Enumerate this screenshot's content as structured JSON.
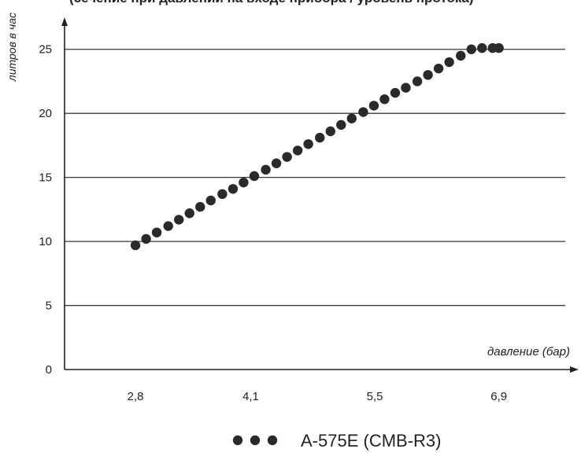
{
  "chart_data": {
    "type": "scatter",
    "title": "",
    "xlabel": "давление (бар)",
    "ylabel": "литров в час",
    "x_ticks": [
      "2,8",
      "4,1",
      "5,5",
      "6,9"
    ],
    "y_ticks": [
      "0",
      "5",
      "10",
      "15",
      "20",
      "25"
    ],
    "xlim": [
      2.0,
      7.8
    ],
    "ylim": [
      0,
      27.5
    ],
    "grid": "horizontal",
    "legend_position": "bottom-center",
    "series": [
      {
        "name": "A-575E (CMB-R3)",
        "color": "#2a2a2a",
        "marker": "circle",
        "x": [
          2.8,
          2.92,
          3.04,
          3.17,
          3.29,
          3.41,
          3.53,
          3.65,
          3.78,
          3.9,
          4.02,
          4.14,
          4.27,
          4.39,
          4.51,
          4.63,
          4.75,
          4.88,
          5.0,
          5.12,
          5.24,
          5.37,
          5.49,
          5.61,
          5.73,
          5.85,
          5.98,
          6.1,
          6.22,
          6.34,
          6.47,
          6.59,
          6.71,
          6.83,
          6.9
        ],
        "y": [
          9.7,
          10.2,
          10.7,
          11.2,
          11.7,
          12.2,
          12.7,
          13.2,
          13.7,
          14.1,
          14.6,
          15.1,
          15.6,
          16.1,
          16.6,
          17.1,
          17.6,
          18.1,
          18.6,
          19.1,
          19.6,
          20.1,
          20.6,
          21.1,
          21.6,
          22.0,
          22.5,
          23.0,
          23.5,
          24.0,
          24.5,
          25.0,
          25.1,
          25.1,
          25.1
        ]
      }
    ]
  }
}
